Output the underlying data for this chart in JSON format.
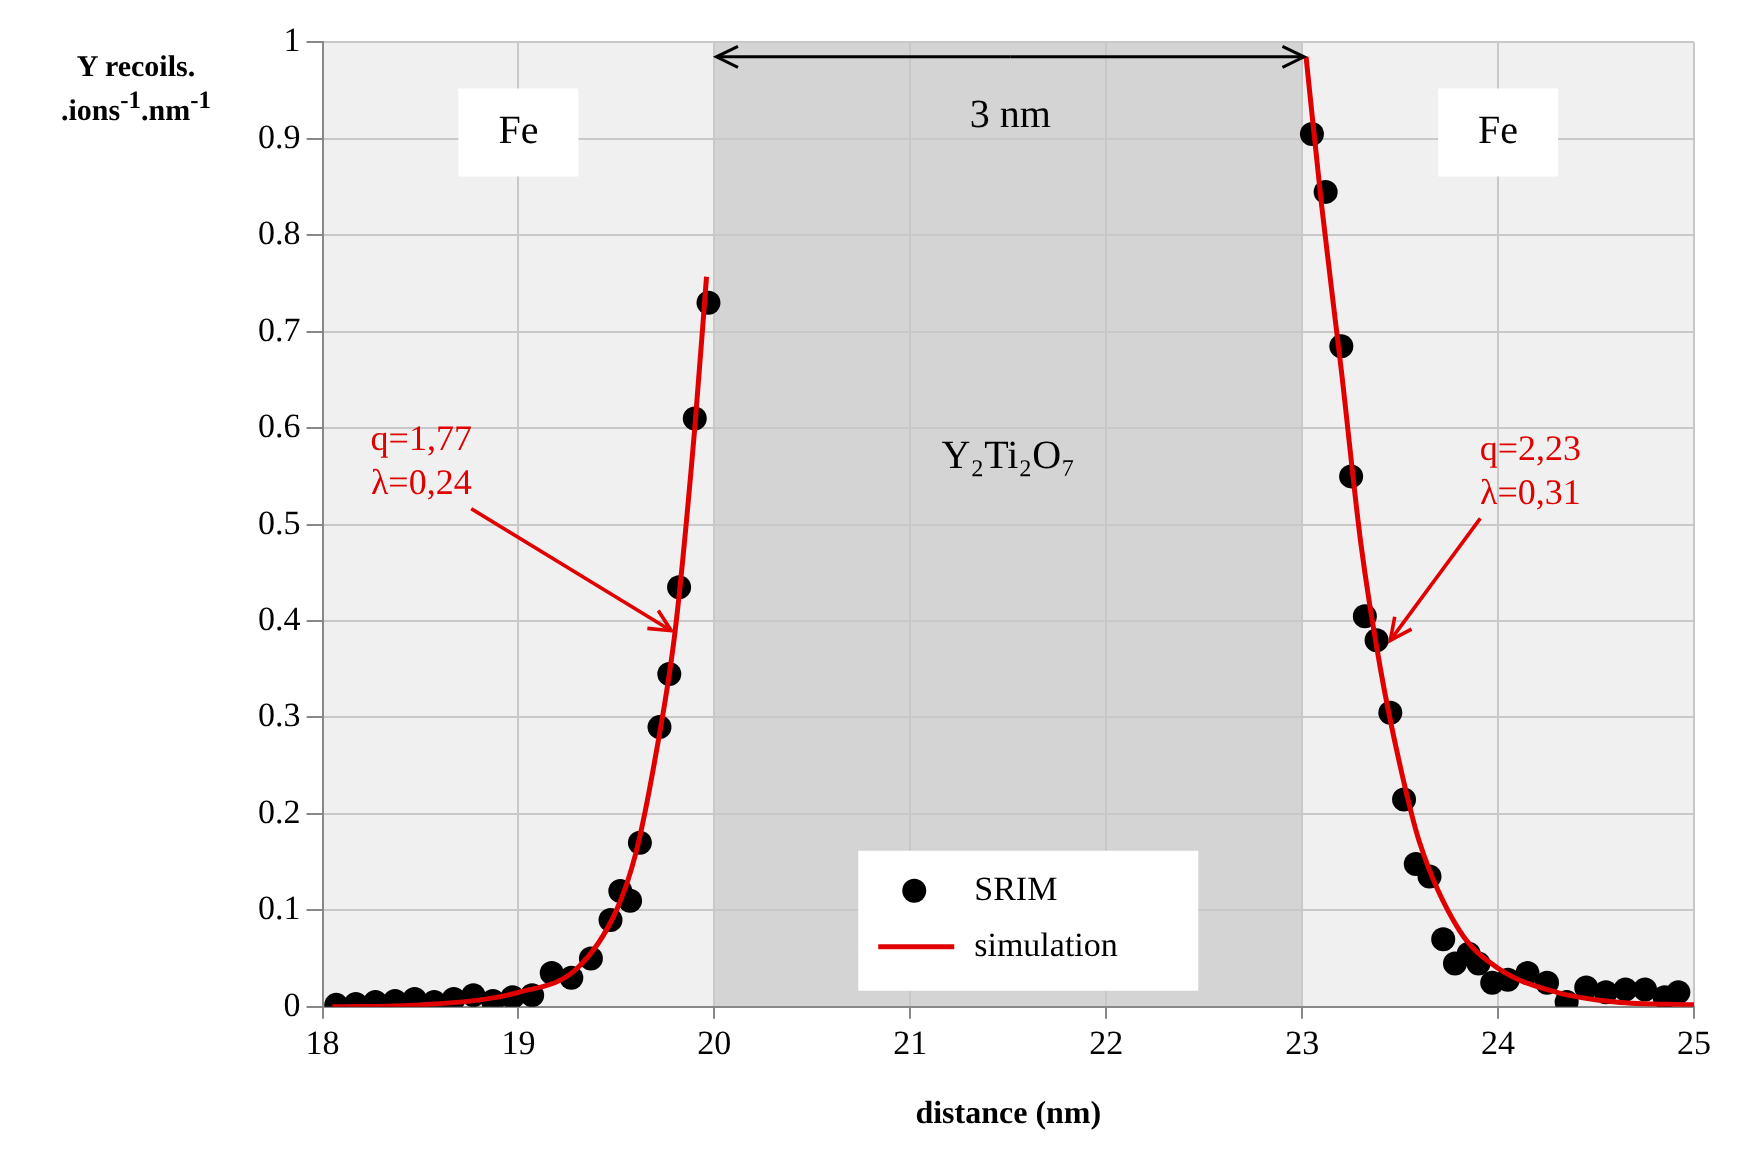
{
  "chart_data": {
    "type": "scatter",
    "xlabel": "distance (nm)",
    "ylabel": "Y recoils.\n.ions$^{-1}$.nm$^{-1}$",
    "xlim": [
      18,
      25
    ],
    "xticks": [
      18,
      19,
      20,
      21,
      22,
      23,
      24,
      25
    ],
    "ylim": [
      0,
      1
    ],
    "yticks": [
      0,
      0.1,
      0.2,
      0.3,
      0.4,
      0.5,
      0.6,
      0.7,
      0.8,
      0.9,
      1
    ],
    "grid": true,
    "legend": "bottom",
    "marker": "circle",
    "series": [
      {
        "name": "SRIM",
        "color": "#000000",
        "x": [
          18.07,
          18.17,
          18.27,
          18.37,
          18.47,
          18.57,
          18.67,
          18.77,
          18.87,
          18.97,
          19.07,
          19.17,
          19.27,
          19.37,
          19.47,
          19.52,
          19.57,
          19.62,
          19.72,
          19.77,
          19.82,
          19.9,
          19.97,
          23.05,
          23.12,
          23.2,
          23.25,
          23.32,
          23.38,
          23.45,
          23.52,
          23.58,
          23.65,
          23.72,
          23.78,
          23.85,
          23.9,
          23.97,
          24.05,
          24.15,
          24.25,
          24.35,
          24.45,
          24.55,
          24.65,
          24.75,
          24.85,
          24.92
        ],
        "values": [
          0.002,
          0.003,
          0.005,
          0.006,
          0.008,
          0.005,
          0.008,
          0.012,
          0.006,
          0.01,
          0.012,
          0.035,
          0.03,
          0.05,
          0.09,
          0.12,
          0.11,
          0.17,
          0.29,
          0.345,
          0.435,
          0.61,
          0.73,
          0.905,
          0.845,
          0.685,
          0.55,
          0.405,
          0.38,
          0.305,
          0.215,
          0.148,
          0.135,
          0.07,
          0.045,
          0.055,
          0.045,
          0.025,
          0.028,
          0.035,
          0.025,
          0.005,
          0.02,
          0.015,
          0.018,
          0.018,
          0.01,
          0.015
        ]
      },
      {
        "name": "simulation",
        "type": "line",
        "color": "#e00000",
        "marker": "none",
        "line_style": "solid",
        "x": [
          18.05,
          18.5,
          19.0,
          19.3,
          19.5,
          19.6,
          19.7,
          19.8,
          19.9,
          19.96,
          21.5,
          23.02,
          23.1,
          23.2,
          23.3,
          23.4,
          23.5,
          23.6,
          23.8,
          24.0,
          24.3,
          24.6,
          25.0
        ],
        "values": [
          0,
          0.002,
          0.015,
          0.04,
          0.1,
          0.16,
          0.26,
          0.39,
          0.6,
          0.757,
          null,
          0.985,
          0.83,
          0.66,
          0.48,
          0.35,
          0.25,
          0.17,
          0.08,
          0.04,
          0.015,
          0.005,
          0.002
        ]
      }
    ],
    "bands": [
      {
        "axis": "x",
        "from": 18,
        "to": 20,
        "label": "Fe",
        "color": "#f0f0f0"
      },
      {
        "axis": "x",
        "from": 20,
        "to": 23,
        "label": "Y₂Ti₂O₇",
        "color": "#d4d4d4"
      },
      {
        "axis": "x",
        "from": 23,
        "to": 25,
        "label": "Fe",
        "color": "#f0f0f0"
      }
    ],
    "annotations": [
      {
        "text": "3 nm",
        "x": 23.02,
        "y": 0.985
      },
      {
        "text": "q=1,77\nλ=0,24",
        "x": 19.78,
        "y": 0.39
      },
      {
        "text": "q=2,23\nλ=0,31",
        "x": 23.45,
        "y": 0.38
      }
    ]
  }
}
